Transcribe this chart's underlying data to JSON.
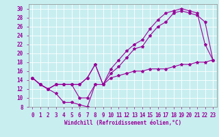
{
  "bg_color": "#c8eef0",
  "line_color": "#990099",
  "grid_color": "#ffffff",
  "xlim": [
    -0.5,
    23.5
  ],
  "ylim": [
    8,
    31
  ],
  "xticks": [
    0,
    1,
    2,
    3,
    4,
    5,
    6,
    7,
    8,
    9,
    10,
    11,
    12,
    13,
    14,
    15,
    16,
    17,
    18,
    19,
    20,
    21,
    22,
    23
  ],
  "yticks": [
    8,
    10,
    12,
    14,
    16,
    18,
    20,
    22,
    24,
    26,
    28,
    30
  ],
  "xlabel": "Windchill (Refroidissement éolien,°C)",
  "line1_x": [
    0,
    1,
    2,
    3,
    4,
    5,
    6,
    7,
    8
  ],
  "line1_y": [
    14.5,
    13.0,
    12.0,
    11.0,
    9.0,
    9.0,
    8.5,
    8.0,
    13.0
  ],
  "line2_x": [
    0,
    1,
    2,
    3,
    4,
    5,
    6,
    7,
    8,
    9,
    10,
    11,
    12,
    13,
    14,
    15,
    16,
    17,
    18,
    19,
    20,
    21,
    22,
    23
  ],
  "line2_y": [
    14.5,
    13.0,
    12.0,
    13.0,
    13.0,
    13.0,
    13.0,
    14.5,
    17.5,
    13.0,
    15.5,
    17.0,
    19.0,
    21.0,
    21.5,
    24.0,
    26.0,
    27.0,
    29.0,
    29.5,
    29.0,
    28.5,
    27.0,
    18.5
  ],
  "line3_x": [
    0,
    1,
    2,
    3,
    4,
    5,
    6,
    7,
    8,
    9,
    10,
    11,
    12,
    13,
    14,
    15,
    16,
    17,
    18,
    19,
    20,
    21,
    22,
    23
  ],
  "line3_y": [
    14.5,
    13.0,
    12.0,
    13.0,
    13.0,
    13.0,
    13.0,
    14.5,
    17.5,
    13.0,
    16.5,
    18.5,
    20.5,
    22.0,
    23.0,
    25.5,
    27.5,
    29.0,
    29.5,
    30.0,
    29.5,
    29.0,
    22.0,
    18.5
  ],
  "line4_x": [
    0,
    1,
    2,
    3,
    4,
    5,
    6,
    7,
    8,
    9,
    10,
    11,
    12,
    13,
    14,
    15,
    16,
    17,
    18,
    19,
    20,
    21,
    22,
    23
  ],
  "line4_y": [
    14.5,
    13.0,
    12.0,
    13.0,
    13.0,
    13.0,
    10.0,
    10.0,
    13.0,
    13.0,
    14.5,
    15.0,
    15.5,
    16.0,
    16.0,
    16.5,
    16.5,
    16.5,
    17.0,
    17.5,
    17.5,
    18.0,
    18.0,
    18.5
  ],
  "tick_fontsize": 5.5,
  "xlabel_fontsize": 5.5
}
